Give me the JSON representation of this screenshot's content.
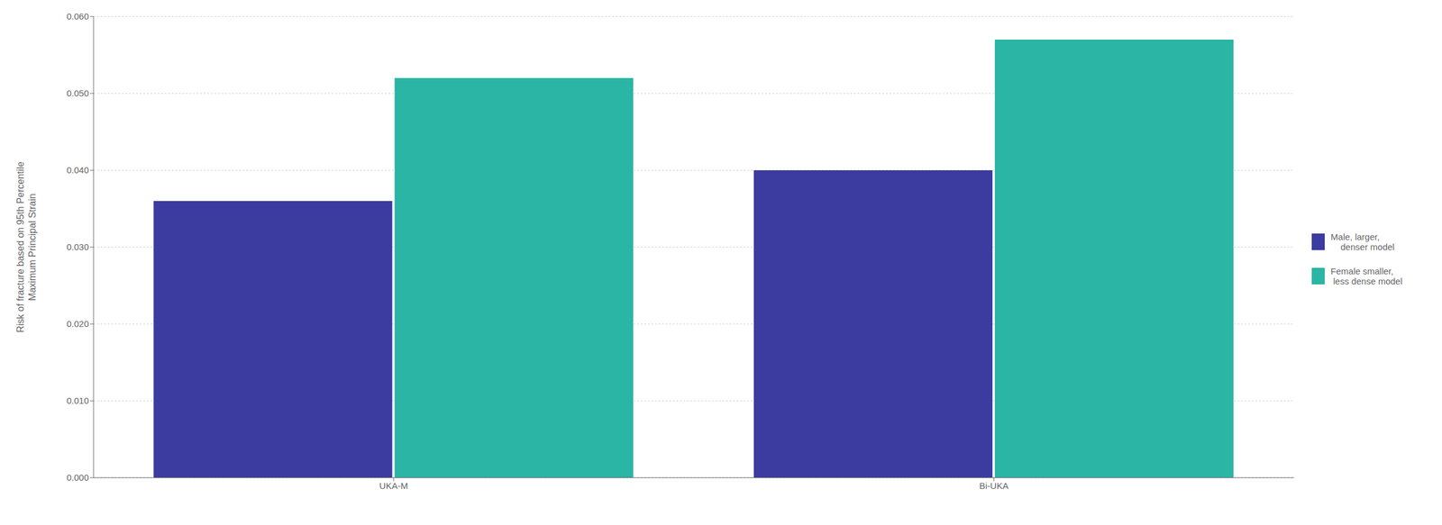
{
  "chart_data": {
    "type": "bar",
    "categories": [
      "UKA-M",
      "Bi-UKA"
    ],
    "series": [
      {
        "name": "Male, larger,\n    denser model",
        "color": "#3B3BA0",
        "values": [
          0.036,
          0.04
        ]
      },
      {
        "name": "Female smaller,\n less dense model",
        "color": "#2AB5A5",
        "values": [
          0.052,
          0.057
        ]
      }
    ],
    "ylabel": "Risk of fracture based on 95th Percentile\nMaximum Principal Strain",
    "ylim": [
      0.0,
      0.06
    ],
    "yticks": [
      {
        "value": 0.0,
        "label": "0.000"
      },
      {
        "value": 0.01,
        "label": "0.010"
      },
      {
        "value": 0.02,
        "label": "0.020"
      },
      {
        "value": 0.03,
        "label": "0.030"
      },
      {
        "value": 0.04,
        "label": "0.040"
      },
      {
        "value": 0.05,
        "label": "0.050"
      },
      {
        "value": 0.06,
        "label": "0.060"
      }
    ],
    "grid": true,
    "legend": "right"
  }
}
